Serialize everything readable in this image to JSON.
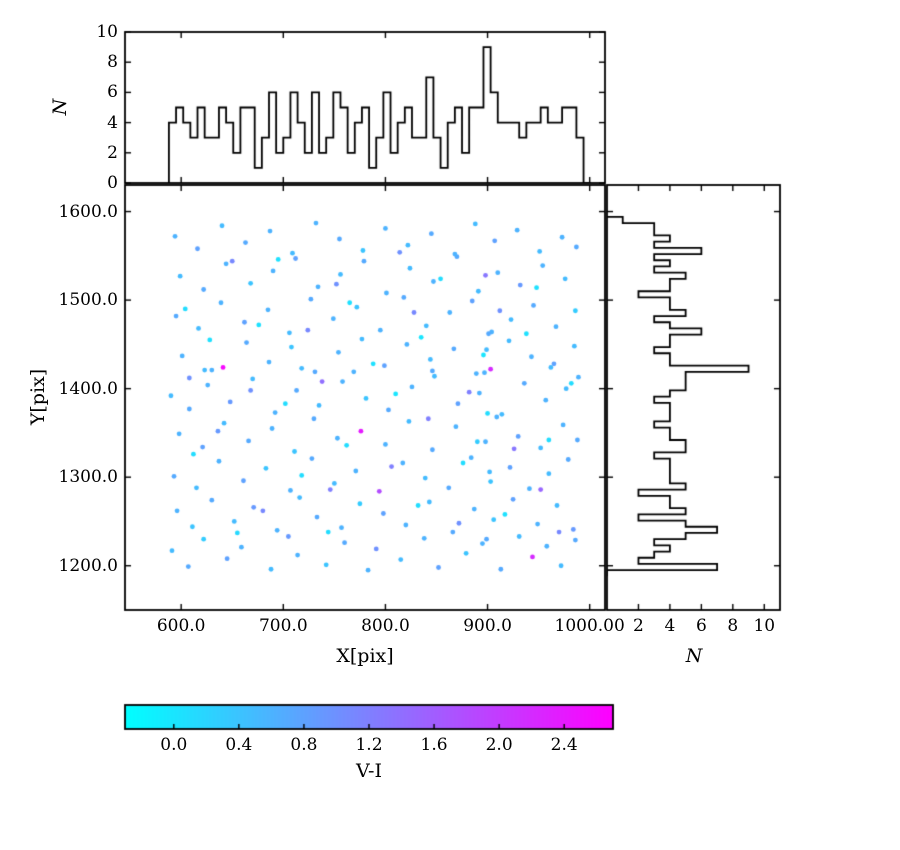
{
  "figure": {
    "background": "#ffffff",
    "axes_color": "#000000",
    "colormap": "cool",
    "colormap_endpoints": [
      "#00ffff",
      "#ff00ff"
    ],
    "vmin": -0.3,
    "vmax": 2.7
  },
  "chart_data": [
    {
      "type": "scatter",
      "title": "",
      "xlabel": "X[pix]",
      "ylabel": "Y[pix]",
      "xlim": [
        545,
        1015
      ],
      "ylim": [
        1150,
        1630
      ],
      "grid": false,
      "x_tick_values": [
        600,
        700,
        800,
        900,
        1000
      ],
      "x_tick_labels": [
        "600.0",
        "700.0",
        "800.0",
        "900.0",
        "1000.00"
      ],
      "y_tick_values": [
        1200,
        1300,
        1400,
        1500,
        1600
      ],
      "y_tick_labels": [
        "1200.0",
        "1300.0",
        "1400.0",
        "1500.0",
        "1600.0"
      ],
      "marker": "dot",
      "marker_radius_px": 2.4,
      "points": [
        [
          591,
          1217,
          0.5
        ],
        [
          607,
          1199,
          0.7
        ],
        [
          622,
          1230,
          0.3
        ],
        [
          645,
          1208,
          0.8
        ],
        [
          659,
          1221,
          0.6
        ],
        [
          688,
          1196,
          0.5
        ],
        [
          705,
          1233,
          0.9
        ],
        [
          714,
          1212,
          0.6
        ],
        [
          742,
          1201,
          0.4
        ],
        [
          760,
          1226,
          0.7
        ],
        [
          783,
          1195,
          0.6
        ],
        [
          791,
          1219,
          1.0
        ],
        [
          815,
          1207,
          0.5
        ],
        [
          838,
          1231,
          0.6
        ],
        [
          852,
          1198,
          0.8
        ],
        [
          879,
          1214,
          0.4
        ],
        [
          895,
          1225,
          0.6
        ],
        [
          913,
          1196,
          0.7
        ],
        [
          931,
          1233,
          0.5
        ],
        [
          944,
          1210,
          2.2
        ],
        [
          958,
          1222,
          0.6
        ],
        [
          972,
          1200,
          0.5
        ],
        [
          986,
          1229,
          0.7
        ],
        [
          596,
          1262,
          0.6
        ],
        [
          611,
          1244,
          0.4
        ],
        [
          630,
          1274,
          0.7
        ],
        [
          652,
          1250,
          0.5
        ],
        [
          671,
          1266,
          0.9
        ],
        [
          694,
          1240,
          0.6
        ],
        [
          716,
          1277,
          0.5
        ],
        [
          733,
          1255,
          0.7
        ],
        [
          757,
          1243,
          0.6
        ],
        [
          775,
          1270,
          0.3
        ],
        [
          798,
          1259,
          0.8
        ],
        [
          820,
          1246,
          0.6
        ],
        [
          843,
          1272,
          0.5
        ],
        [
          866,
          1238,
          0.7
        ],
        [
          887,
          1264,
          0.6
        ],
        [
          906,
          1252,
          0.4
        ],
        [
          925,
          1275,
          0.8
        ],
        [
          949,
          1247,
          0.6
        ],
        [
          968,
          1268,
          0.5
        ],
        [
          984,
          1241,
          0.9
        ],
        [
          593,
          1301,
          0.7
        ],
        [
          615,
          1288,
          0.5
        ],
        [
          637,
          1318,
          0.6
        ],
        [
          661,
          1296,
          0.8
        ],
        [
          683,
          1310,
          0.4
        ],
        [
          707,
          1285,
          0.6
        ],
        [
          728,
          1321,
          0.7
        ],
        [
          750,
          1293,
          0.5
        ],
        [
          771,
          1307,
          0.6
        ],
        [
          794,
          1284,
          1.8
        ],
        [
          817,
          1316,
          0.6
        ],
        [
          839,
          1299,
          0.5
        ],
        [
          862,
          1288,
          0.7
        ],
        [
          884,
          1322,
          0.6
        ],
        [
          903,
          1295,
          0.4
        ],
        [
          922,
          1311,
          0.8
        ],
        [
          941,
          1287,
          0.6
        ],
        [
          960,
          1304,
          0.5
        ],
        [
          979,
          1320,
          0.7
        ],
        [
          598,
          1349,
          0.6
        ],
        [
          621,
          1334,
          0.8
        ],
        [
          642,
          1361,
          0.5
        ],
        [
          666,
          1341,
          0.7
        ],
        [
          689,
          1355,
          0.6
        ],
        [
          711,
          1329,
          0.4
        ],
        [
          730,
          1366,
          0.7
        ],
        [
          753,
          1344,
          0.6
        ],
        [
          776,
          1352,
          2.4
        ],
        [
          800,
          1337,
          0.6
        ],
        [
          823,
          1363,
          0.5
        ],
        [
          846,
          1331,
          0.7
        ],
        [
          869,
          1357,
          0.6
        ],
        [
          890,
          1340,
          0.3
        ],
        [
          909,
          1368,
          0.6
        ],
        [
          930,
          1346,
          0.8
        ],
        [
          952,
          1333,
          0.5
        ],
        [
          974,
          1359,
          0.6
        ],
        [
          988,
          1342,
          0.7
        ],
        [
          590,
          1392,
          0.5
        ],
        [
          608,
          1377,
          0.7
        ],
        [
          626,
          1404,
          0.6
        ],
        [
          648,
          1385,
          0.9
        ],
        [
          670,
          1411,
          0.5
        ],
        [
          692,
          1373,
          0.6
        ],
        [
          713,
          1398,
          0.7
        ],
        [
          735,
          1381,
          0.5
        ],
        [
          758,
          1408,
          0.6
        ],
        [
          781,
          1389,
          0.4
        ],
        [
          803,
          1376,
          0.7
        ],
        [
          826,
          1402,
          0.6
        ],
        [
          848,
          1414,
          0.5
        ],
        [
          871,
          1383,
          0.8
        ],
        [
          892,
          1395,
          0.6
        ],
        [
          914,
          1371,
          0.5
        ],
        [
          936,
          1406,
          0.7
        ],
        [
          957,
          1387,
          0.6
        ],
        [
          977,
          1400,
          0.5
        ],
        [
          989,
          1413,
          0.6
        ],
        [
          601,
          1437,
          0.6
        ],
        [
          623,
          1421,
          0.5
        ],
        [
          641,
          1424,
          2.6
        ],
        [
          664,
          1452,
          0.7
        ],
        [
          686,
          1430,
          0.6
        ],
        [
          708,
          1447,
          0.4
        ],
        [
          731,
          1419,
          0.7
        ],
        [
          754,
          1441,
          0.6
        ],
        [
          777,
          1456,
          0.5
        ],
        [
          799,
          1426,
          0.8
        ],
        [
          821,
          1450,
          0.6
        ],
        [
          844,
          1433,
          0.5
        ],
        [
          867,
          1445,
          0.7
        ],
        [
          889,
          1417,
          0.6
        ],
        [
          903,
          1422,
          2.2
        ],
        [
          921,
          1454,
          0.5
        ],
        [
          943,
          1436,
          0.6
        ],
        [
          965,
          1428,
          0.8
        ],
        [
          985,
          1448,
          0.5
        ],
        [
          595,
          1482,
          0.7
        ],
        [
          617,
          1468,
          0.5
        ],
        [
          639,
          1497,
          0.6
        ],
        [
          662,
          1475,
          0.8
        ],
        [
          685,
          1489,
          0.6
        ],
        [
          706,
          1463,
          0.5
        ],
        [
          727,
          1501,
          0.7
        ],
        [
          749,
          1479,
          0.6
        ],
        [
          772,
          1492,
          0.4
        ],
        [
          795,
          1466,
          0.6
        ],
        [
          818,
          1503,
          0.7
        ],
        [
          840,
          1471,
          0.5
        ],
        [
          863,
          1486,
          0.6
        ],
        [
          885,
          1499,
          0.8
        ],
        [
          904,
          1464,
          0.6
        ],
        [
          923,
          1478,
          0.5
        ],
        [
          945,
          1494,
          0.7
        ],
        [
          967,
          1470,
          0.6
        ],
        [
          986,
          1488,
          0.3
        ],
        [
          599,
          1527,
          0.5
        ],
        [
          622,
          1512,
          0.7
        ],
        [
          644,
          1541,
          0.6
        ],
        [
          668,
          1519,
          0.4
        ],
        [
          690,
          1533,
          0.6
        ],
        [
          712,
          1547,
          0.8
        ],
        [
          734,
          1515,
          0.6
        ],
        [
          756,
          1529,
          0.5
        ],
        [
          779,
          1544,
          0.7
        ],
        [
          801,
          1508,
          0.6
        ],
        [
          824,
          1536,
          0.5
        ],
        [
          847,
          1521,
          0.6
        ],
        [
          870,
          1549,
          0.7
        ],
        [
          891,
          1510,
          0.5
        ],
        [
          910,
          1531,
          0.6
        ],
        [
          932,
          1517,
          0.9
        ],
        [
          954,
          1539,
          0.6
        ],
        [
          976,
          1524,
          0.5
        ],
        [
          594,
          1572,
          0.6
        ],
        [
          616,
          1558,
          0.8
        ],
        [
          640,
          1584,
          0.5
        ],
        [
          663,
          1565,
          0.7
        ],
        [
          687,
          1578,
          0.6
        ],
        [
          709,
          1553,
          0.5
        ],
        [
          732,
          1587,
          0.6
        ],
        [
          755,
          1569,
          0.7
        ],
        [
          778,
          1556,
          0.4
        ],
        [
          800,
          1581,
          0.6
        ],
        [
          822,
          1562,
          0.5
        ],
        [
          845,
          1575,
          0.7
        ],
        [
          868,
          1552,
          0.6
        ],
        [
          888,
          1586,
          0.5
        ],
        [
          907,
          1567,
          0.8
        ],
        [
          929,
          1579,
          0.6
        ],
        [
          951,
          1555,
          0.5
        ],
        [
          973,
          1571,
          0.6
        ],
        [
          987,
          1560,
          0.7
        ],
        [
          612,
          1326,
          0.1
        ],
        [
          676,
          1472,
          0.05
        ],
        [
          744,
          1238,
          0.1
        ],
        [
          810,
          1394,
          0.0
        ],
        [
          876,
          1316,
          0.1
        ],
        [
          938,
          1462,
          0.05
        ],
        [
          655,
          1237,
          0.15
        ],
        [
          702,
          1383,
          0.1
        ],
        [
          765,
          1497,
          0.05
        ],
        [
          832,
          1268,
          0.1
        ],
        [
          896,
          1438,
          0.0
        ],
        [
          960,
          1342,
          0.1
        ],
        [
          628,
          1455,
          0.05
        ],
        [
          718,
          1302,
          0.1
        ],
        [
          788,
          1428,
          0.05
        ],
        [
          854,
          1524,
          0.1
        ],
        [
          917,
          1258,
          0.05
        ],
        [
          982,
          1406,
          0.1
        ],
        [
          604,
          1490,
          0.1
        ],
        [
          695,
          1546,
          0.05
        ],
        [
          762,
          1336,
          0.1
        ],
        [
          835,
          1458,
          0.0
        ],
        [
          900,
          1372,
          0.1
        ],
        [
          948,
          1514,
          0.05
        ],
        [
          636,
          1352,
          0.9
        ],
        [
          724,
          1466,
          1.1
        ],
        [
          806,
          1312,
          1.2
        ],
        [
          872,
          1248,
          1.0
        ],
        [
          926,
          1332,
          1.3
        ],
        [
          650,
          1544,
          1.1
        ],
        [
          738,
          1408,
          1.4
        ],
        [
          814,
          1554,
          1.0
        ],
        [
          882,
          1396,
          1.2
        ],
        [
          952,
          1286,
          1.5
        ],
        [
          668,
          1398,
          1.0
        ],
        [
          746,
          1286,
          1.2
        ],
        [
          828,
          1486,
          1.1
        ],
        [
          898,
          1528,
          1.3
        ],
        [
          608,
          1412,
          1.0
        ],
        [
          680,
          1262,
          1.1
        ],
        [
          752,
          1518,
          1.0
        ],
        [
          842,
          1366,
          1.2
        ],
        [
          912,
          1488,
          1.0
        ],
        [
          970,
          1238,
          1.1
        ],
        [
          897,
          1418,
          0.6
        ],
        [
          899,
          1444,
          0.5
        ],
        [
          901,
          1462,
          0.7
        ],
        [
          898,
          1340,
          0.6
        ],
        [
          902,
          1306,
          0.5
        ],
        [
          899,
          1230,
          0.7
        ],
        [
          630,
          1421,
          0.6
        ],
        [
          718,
          1423,
          0.5
        ],
        [
          769,
          1419,
          0.6
        ],
        [
          846,
          1420,
          0.7
        ],
        [
          962,
          1424,
          0.5
        ]
      ]
    },
    {
      "type": "bar",
      "subtype": "step-histogram-top-marginal",
      "title": "",
      "xlabel": "",
      "ylabel": "N",
      "ylim": [
        0,
        10
      ],
      "y_tick_values": [
        0,
        2,
        4,
        6,
        8,
        10
      ],
      "y_tick_labels": [
        "0",
        "2",
        "4",
        "6",
        "8",
        "10"
      ],
      "bin_start": 588,
      "bin_width": 7,
      "source": "histogram of scatter X values"
    },
    {
      "type": "bar",
      "subtype": "step-histogram-right-marginal",
      "title": "",
      "xlabel": "N",
      "ylabel": "",
      "xlim": [
        0,
        11
      ],
      "x_tick_values": [
        2,
        4,
        6,
        8,
        10
      ],
      "x_tick_labels": [
        "2",
        "4",
        "6",
        "8",
        "10"
      ],
      "bin_start": 1188,
      "bin_width": 7,
      "source": "histogram of scatter Y values"
    }
  ],
  "colorbar": {
    "label": "V-I",
    "orientation": "horizontal",
    "tick_values": [
      0.0,
      0.4,
      0.8,
      1.2,
      1.6,
      2.0,
      2.4
    ],
    "tick_labels": [
      "0.0",
      "0.4",
      "0.8",
      "1.2",
      "1.6",
      "2.0",
      "2.4"
    ],
    "min_color": "#00ffff",
    "max_color": "#ff00ff"
  }
}
